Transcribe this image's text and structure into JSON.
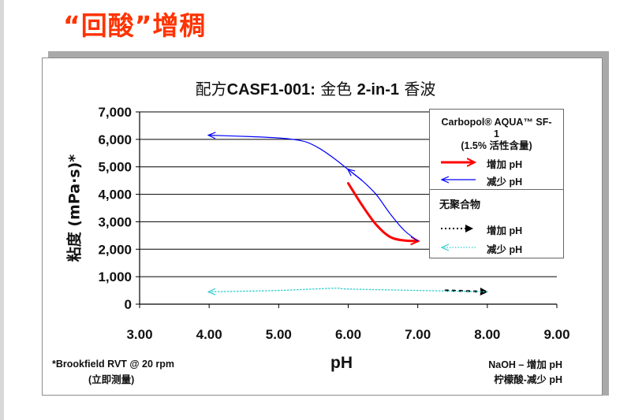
{
  "slide": {
    "title": "“回酸”增稠"
  },
  "chart_data": {
    "type": "line",
    "title_prefix": "配方",
    "title_code": "CASF1-001:",
    "title_suffix_cn": "金色",
    "title_suffix_b": "2-in-1",
    "title_suffix_end": "香波",
    "xlabel": "pH",
    "ylabel": "粘度 (mPa·s)*",
    "xlim": [
      3.0,
      9.0
    ],
    "ylim": [
      0,
      7000
    ],
    "x_ticks": [
      "3.00",
      "4.00",
      "5.00",
      "6.00",
      "7.00",
      "8.00",
      "9.00"
    ],
    "y_ticks": [
      "0",
      "1,000",
      "2,000",
      "3,000",
      "4,000",
      "5,000",
      "6,000",
      "7,000"
    ],
    "gridlines": "horizontal",
    "legend_placement": "right",
    "legend": {
      "heading_line1": "Carbopol® AQUA™ SF-",
      "heading_line2": "1",
      "heading_line3": "(1.5% 活性含量)",
      "group2_heading": "无聚合物",
      "increase_label": "增加 pH",
      "decrease_label": "减少 pH"
    },
    "series": [
      {
        "name": "Carbopol® AQUA™ SF-1 增加 pH",
        "color": "#ff0000",
        "style": "solid",
        "x": [
          6.0,
          6.2,
          6.4,
          6.6,
          6.8,
          7.0
        ],
        "y": [
          4400,
          3600,
          2900,
          2450,
          2320,
          2300
        ]
      },
      {
        "name": "Carbopol® AQUA™ SF-1 减少 pH",
        "color": "#0000ff",
        "style": "solid",
        "x": [
          7.0,
          6.8,
          6.6,
          6.4,
          6.2,
          6.0,
          5.8,
          5.6,
          5.4,
          5.2,
          5.0,
          4.6,
          4.0
        ],
        "y": [
          2300,
          2700,
          3300,
          4000,
          4500,
          4900,
          5300,
          5650,
          5900,
          6000,
          6050,
          6100,
          6150
        ]
      },
      {
        "name": "无聚合物 增加 pH",
        "color": "#000000",
        "style": "dotted",
        "x": [
          7.4,
          8.0
        ],
        "y": [
          500,
          450
        ]
      },
      {
        "name": "无聚合物 减少 pH",
        "color": "#33cccc",
        "style": "dotted",
        "x": [
          8.0,
          7.0,
          6.0,
          5.8,
          5.0,
          4.0
        ],
        "y": [
          450,
          500,
          550,
          580,
          500,
          450
        ]
      }
    ],
    "footnote_line1": "*Brookfield RVT @ 20 rpm",
    "footnote_line2": "(立即测量)",
    "note_line1": "NaOH – 增加 pH",
    "note_line2": "柠檬酸-减少 pH",
    "colors": {
      "increase": "#ff0000",
      "decrease": "#0000ff",
      "no_polymer_increase": "#000000",
      "no_polymer_decrease": "#33cccc",
      "title": "#ff3300"
    }
  }
}
